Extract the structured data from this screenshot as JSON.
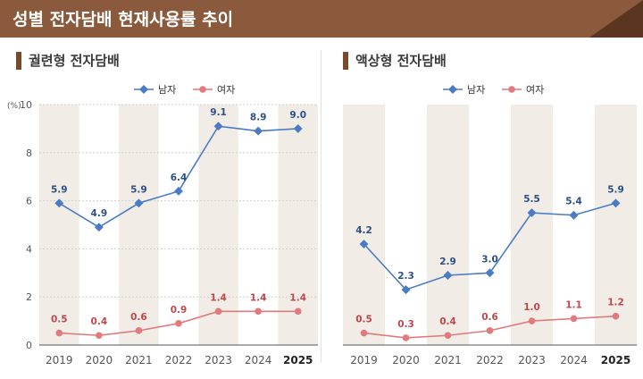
{
  "page_title": "성별 전자담배 현재사용률 추이",
  "colors": {
    "header": "#8b5a3c",
    "header_dark": "#5a3520",
    "male": "#4a7bc4",
    "female": "#e07a7e",
    "stripe": "#f1ede6",
    "axis": "#555555",
    "grid": "#cfcfcf",
    "label": "#555555",
    "title_bar": "#7a4a2e"
  },
  "chart_data": [
    {
      "type": "line",
      "title": "궐련형 전자담배",
      "yunit": "(%)",
      "ylim": [
        0,
        10
      ],
      "yticks": [
        0,
        2,
        4,
        6,
        8,
        10
      ],
      "categories": [
        "2019",
        "2020",
        "2021",
        "2022",
        "2023",
        "2024",
        "2025"
      ],
      "grid": true,
      "legend_position": "top-center",
      "series": [
        {
          "name": "남자",
          "color_key": "male",
          "values": [
            5.9,
            4.9,
            5.9,
            6.4,
            9.1,
            8.9,
            9.0
          ],
          "labels": [
            "5.9",
            "4.9",
            "5.9",
            "6.4",
            "9.1",
            "8.9",
            "9.0"
          ]
        },
        {
          "name": "여자",
          "color_key": "female",
          "values": [
            0.5,
            0.4,
            0.6,
            0.9,
            1.4,
            1.4,
            1.4
          ],
          "labels": [
            "0.5",
            "0.4",
            "0.6",
            "0.9",
            "1.4",
            "1.4",
            "1.4"
          ]
        }
      ]
    },
    {
      "type": "line",
      "title": "액상형 전자담배",
      "yunit": "",
      "ylim": [
        0,
        10
      ],
      "yticks": [],
      "categories": [
        "2019",
        "2020",
        "2021",
        "2022",
        "2023",
        "2024",
        "2025"
      ],
      "grid": false,
      "legend_position": "top-center",
      "series": [
        {
          "name": "남자",
          "color_key": "male",
          "values": [
            4.2,
            2.3,
            2.9,
            3.0,
            5.5,
            5.4,
            5.9
          ],
          "labels": [
            "4.2",
            "2.3",
            "2.9",
            "3.0",
            "5.5",
            "5.4",
            "5.9"
          ]
        },
        {
          "name": "여자",
          "color_key": "female",
          "values": [
            0.5,
            0.3,
            0.4,
            0.6,
            1.0,
            1.1,
            1.2
          ],
          "labels": [
            "0.5",
            "0.3",
            "0.4",
            "0.6",
            "1.0",
            "1.1",
            "1.2"
          ]
        }
      ]
    }
  ]
}
